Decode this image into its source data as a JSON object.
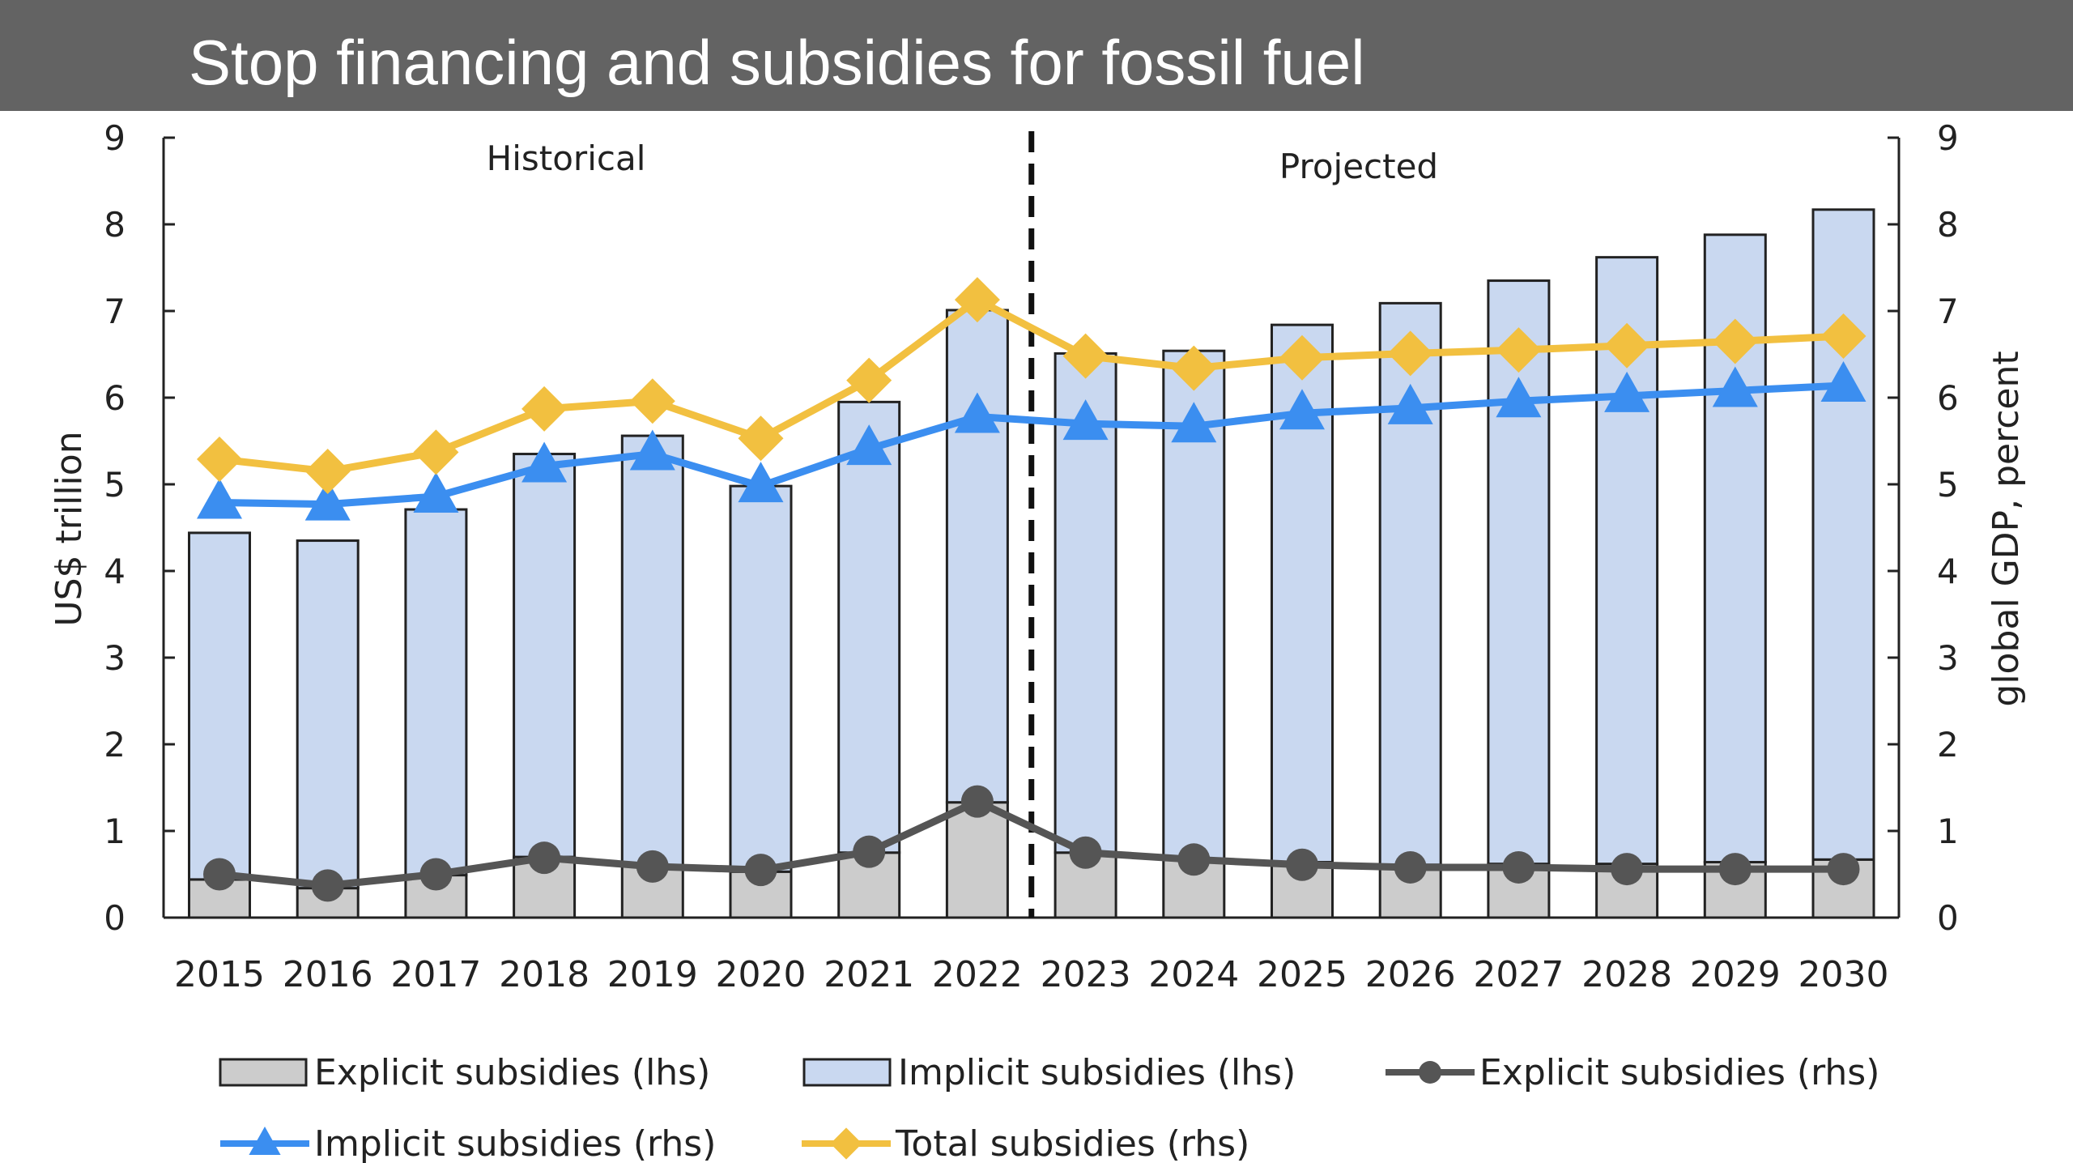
{
  "header": {
    "title": "Stop financing and subsidies for fossil fuel"
  },
  "colors": {
    "header_bg": "#636363",
    "implicit_bar": "#c9d8f0",
    "explicit_bar": "#cccccc",
    "explicit_line": "#555555",
    "implicit_line": "#3b8ef0",
    "total_line": "#f2c040"
  },
  "chart_data": {
    "type": "bar",
    "categories": [
      "2015",
      "2016",
      "2017",
      "2018",
      "2019",
      "2020",
      "2021",
      "2022",
      "2023",
      "2024",
      "2025",
      "2026",
      "2027",
      "2028",
      "2029",
      "2030"
    ],
    "ylabel": "US$ trillion",
    "y2label": "global GDP, percent",
    "ylim": [
      0,
      9
    ],
    "y2lim": [
      0,
      9
    ],
    "yticks": [
      "0",
      "1",
      "2",
      "3",
      "4",
      "5",
      "6",
      "7",
      "8",
      "9"
    ],
    "annotations": {
      "historical": "Historical",
      "projected": "Projected",
      "divider_between": [
        "2022",
        "2023"
      ]
    },
    "grid": false,
    "legend_position": "bottom",
    "series": [
      {
        "name": "Explicit subsidies (lhs)",
        "kind": "stacked-bar",
        "axis": "left",
        "values": [
          0.44,
          0.34,
          0.49,
          0.7,
          0.59,
          0.53,
          0.75,
          1.33,
          0.75,
          0.67,
          0.64,
          0.61,
          0.62,
          0.62,
          0.64,
          0.67
        ]
      },
      {
        "name": "Implicit subsidies (lhs)",
        "kind": "stacked-bar",
        "axis": "left",
        "values": [
          4.0,
          4.01,
          4.22,
          4.65,
          4.97,
          4.45,
          5.2,
          5.68,
          5.76,
          5.87,
          6.2,
          6.48,
          6.73,
          7.0,
          7.24,
          7.5
        ]
      },
      {
        "name": "Explicit subsidies (rhs)",
        "kind": "line",
        "marker": "circle",
        "axis": "right",
        "values": [
          0.5,
          0.37,
          0.5,
          0.69,
          0.59,
          0.55,
          0.76,
          1.34,
          0.75,
          0.67,
          0.61,
          0.58,
          0.58,
          0.56,
          0.56,
          0.56
        ]
      },
      {
        "name": "Implicit subsidies (rhs)",
        "kind": "line",
        "marker": "triangle",
        "axis": "right",
        "values": [
          4.79,
          4.77,
          4.86,
          5.21,
          5.35,
          4.98,
          5.41,
          5.78,
          5.7,
          5.67,
          5.82,
          5.88,
          5.96,
          6.02,
          6.08,
          6.14
        ]
      },
      {
        "name": "Total subsidies (rhs)",
        "kind": "line",
        "marker": "diamond",
        "axis": "right",
        "values": [
          5.29,
          5.15,
          5.37,
          5.87,
          5.96,
          5.53,
          6.2,
          7.13,
          6.48,
          6.34,
          6.46,
          6.51,
          6.55,
          6.6,
          6.65,
          6.71
        ]
      }
    ]
  }
}
